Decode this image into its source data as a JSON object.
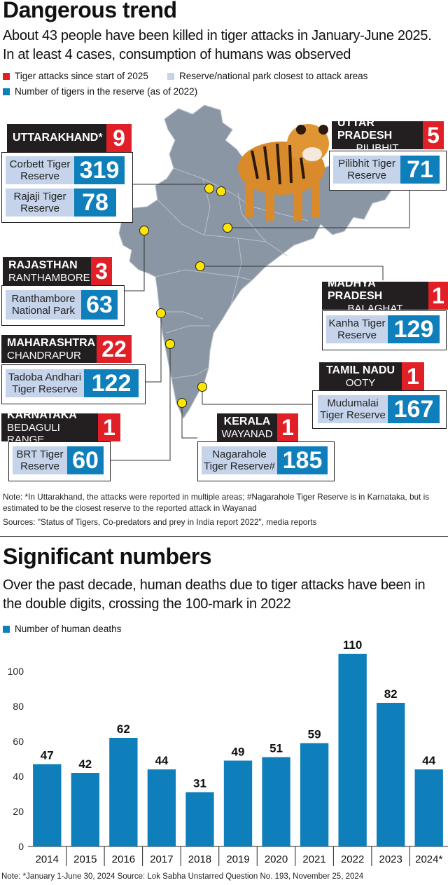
{
  "header": {
    "title": "Dangerous trend",
    "subtitle": "About 43 people have been killed in tiger attacks in January-June 2025. In at least 4 cases, consumption of humans was observed"
  },
  "legend": {
    "attacks": "Tiger attacks since start of 2025",
    "reserve": "Reserve/national park closest to attack areas",
    "tigers": "Number of tigers in the reserve (as of 2022)"
  },
  "colors": {
    "attacks": "#e11f26",
    "reserve": "#c5d4ea",
    "tigers": "#0e7fbb",
    "map": "#8a96a3",
    "dot": "#ffe600"
  },
  "states": [
    {
      "state": "UTTARAKHAND*",
      "district": "",
      "attacks": "9",
      "reserves": [
        {
          "name": "Corbett Tiger Reserve",
          "tigers": "319"
        },
        {
          "name": "Rajaji Tiger Reserve",
          "tigers": "78"
        }
      ]
    },
    {
      "state": "UTTAR PRADESH",
      "district": "PILIBHIT",
      "attacks": "5",
      "reserves": [
        {
          "name": "Pilibhit Tiger Reserve",
          "tigers": "71"
        }
      ]
    },
    {
      "state": "RAJASTHAN",
      "district": "RANTHAMBORE",
      "attacks": "3",
      "reserves": [
        {
          "name": "Ranthambore National Park",
          "tigers": "63"
        }
      ]
    },
    {
      "state": "MADHYA PRADESH",
      "district": "BALAGHAT",
      "attacks": "1",
      "reserves": [
        {
          "name": "Kanha Tiger Reserve",
          "tigers": "129"
        }
      ]
    },
    {
      "state": "MAHARASHTRA",
      "district": "CHANDRAPUR",
      "attacks": "22",
      "reserves": [
        {
          "name": "Tadoba Andhari Tiger Reserve",
          "tigers": "122"
        }
      ]
    },
    {
      "state": "TAMIL NADU",
      "district": "OOTY",
      "attacks": "1",
      "reserves": [
        {
          "name": "Mudumalai Tiger Reserve",
          "tigers": "167"
        }
      ]
    },
    {
      "state": "KARNATAKA",
      "district": "BEDAGULI RANGE",
      "attacks": "1",
      "reserves": [
        {
          "name": "BRT Tiger Reserve",
          "tigers": "60"
        }
      ]
    },
    {
      "state": "KERALA",
      "district": "WAYANAD",
      "attacks": "1",
      "reserves": [
        {
          "name": "Nagarahole Tiger Reserve#",
          "tigers": "185"
        }
      ]
    }
  ],
  "notes": {
    "note": "Note: *In Uttarakhand, the attacks were reported in multiple areas; #Nagarahole Tiger Reserve is in Karnataka, but is estimated to be the closest reserve to the reported attack in Wayanad",
    "sources": "Sources: \"Status of Tigers, Co-predators and prey in India report 2022\", media reports"
  },
  "section2": {
    "title": "Significant numbers",
    "subtitle": "Over the past decade, human deaths due to tiger attacks have been in the double digits, crossing the 100-mark in 2022",
    "legend": "Number of human deaths"
  },
  "chart_data": {
    "type": "bar",
    "categories": [
      "2014",
      "2015",
      "2016",
      "2017",
      "2018",
      "2019",
      "2020",
      "2021",
      "2022",
      "2023",
      "2024*"
    ],
    "series": [
      {
        "name": "Number of human deaths",
        "values": [
          47,
          42,
          62,
          44,
          31,
          49,
          51,
          59,
          110,
          82,
          44
        ]
      }
    ],
    "yticks": [
      0,
      20,
      40,
      60,
      80,
      100
    ],
    "ylim": [
      0,
      120
    ],
    "grid": false,
    "data_labels": true,
    "color": "#0e7fbb"
  },
  "footnote": "Note: *January 1-June 30, 2024 Source: Lok Sabha Unstarred Question No. 193, November 25, 2024"
}
